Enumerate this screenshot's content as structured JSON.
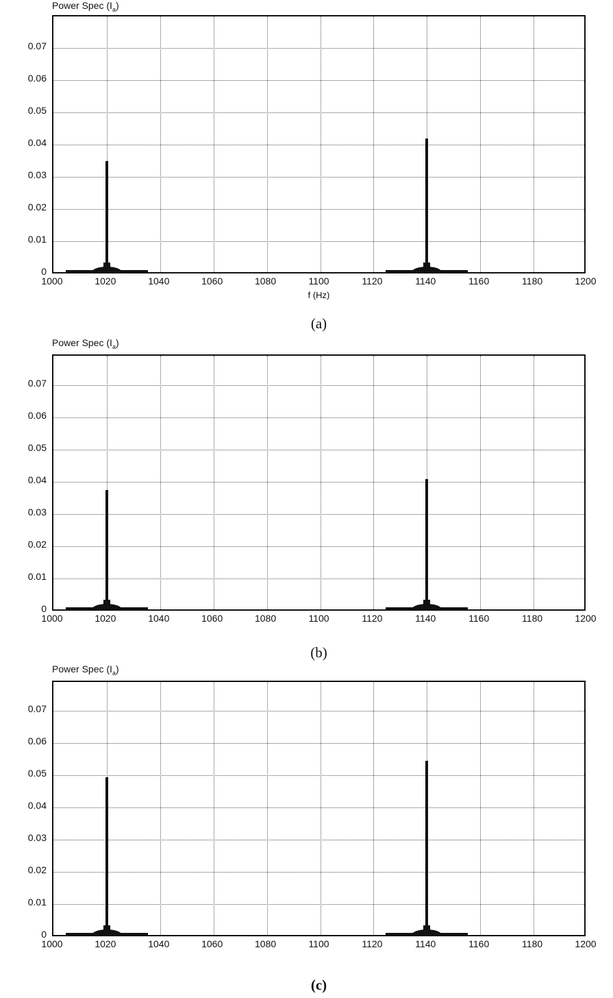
{
  "figure": {
    "panels": [
      {
        "title": "Power Spec (I",
        "title_sub": "a",
        "title_close": ")",
        "xlabel": "f (Hz)",
        "caption": "(a)"
      },
      {
        "title": "Power Spec (I",
        "title_sub": "a",
        "title_close": ")",
        "xlabel": "",
        "caption": "(b)"
      },
      {
        "title": "Power Spec (I",
        "title_sub": "a",
        "title_close": ")",
        "xlabel": "",
        "caption": "(c)"
      }
    ],
    "yticks": [
      "0",
      "0.01",
      "0.02",
      "0.03",
      "0.04",
      "0.05",
      "0.06",
      "0.07"
    ],
    "xticks": [
      "1000",
      "1020",
      "1040",
      "1060",
      "1080",
      "1100",
      "1120",
      "1140",
      "1160",
      "1180",
      "1200"
    ]
  },
  "chart_data": [
    {
      "type": "line",
      "title": "Power Spec (I_a)",
      "xlabel": "f (Hz)",
      "ylabel": "",
      "caption": "(a)",
      "xlim": [
        1000,
        1200
      ],
      "ylim": [
        0,
        0.078
      ],
      "grid": true,
      "peaks": [
        {
          "x": 1020,
          "y": 0.0345
        },
        {
          "x": 1140,
          "y": 0.0415
        }
      ],
      "x": [
        1000,
        1010,
        1015,
        1018,
        1019,
        1020,
        1021,
        1022,
        1025,
        1030,
        1040,
        1100,
        1130,
        1135,
        1138,
        1139,
        1140,
        1141,
        1142,
        1145,
        1150,
        1170,
        1200
      ],
      "y": [
        0.0002,
        0.0003,
        0.0006,
        0.0015,
        0.003,
        0.0345,
        0.003,
        0.0015,
        0.0006,
        0.0003,
        0.0002,
        0.0001,
        0.0003,
        0.0006,
        0.0015,
        0.004,
        0.0415,
        0.004,
        0.0015,
        0.0006,
        0.0003,
        0.0002,
        0.0001
      ]
    },
    {
      "type": "line",
      "title": "Power Spec (I_a)",
      "xlabel": "",
      "ylabel": "",
      "caption": "(b)",
      "xlim": [
        1000,
        1200
      ],
      "ylim": [
        0,
        0.078
      ],
      "grid": true,
      "peaks": [
        {
          "x": 1020,
          "y": 0.037
        },
        {
          "x": 1140,
          "y": 0.0405
        }
      ],
      "x": [
        1000,
        1010,
        1015,
        1018,
        1019,
        1020,
        1021,
        1022,
        1025,
        1030,
        1040,
        1100,
        1130,
        1135,
        1138,
        1139,
        1140,
        1141,
        1142,
        1145,
        1150,
        1170,
        1200
      ],
      "y": [
        0.0002,
        0.0003,
        0.0006,
        0.0015,
        0.003,
        0.037,
        0.003,
        0.0015,
        0.0006,
        0.0003,
        0.0002,
        0.0001,
        0.0003,
        0.0006,
        0.0015,
        0.004,
        0.0405,
        0.004,
        0.0015,
        0.0006,
        0.0003,
        0.0002,
        0.0001
      ]
    },
    {
      "type": "line",
      "title": "Power Spec (I_a)",
      "xlabel": "",
      "ylabel": "",
      "caption": "(c)",
      "xlim": [
        1000,
        1200
      ],
      "ylim": [
        0,
        0.078
      ],
      "grid": true,
      "peaks": [
        {
          "x": 1020,
          "y": 0.049
        },
        {
          "x": 1140,
          "y": 0.054
        }
      ],
      "x": [
        1000,
        1010,
        1015,
        1018,
        1019,
        1020,
        1021,
        1022,
        1025,
        1030,
        1040,
        1100,
        1130,
        1135,
        1138,
        1139,
        1140,
        1141,
        1142,
        1145,
        1150,
        1170,
        1200
      ],
      "y": [
        0.0002,
        0.0003,
        0.0007,
        0.0018,
        0.004,
        0.049,
        0.004,
        0.0018,
        0.0007,
        0.0003,
        0.0002,
        0.0001,
        0.0003,
        0.0007,
        0.0018,
        0.005,
        0.054,
        0.005,
        0.0018,
        0.0007,
        0.0003,
        0.0002,
        0.0001
      ]
    }
  ]
}
